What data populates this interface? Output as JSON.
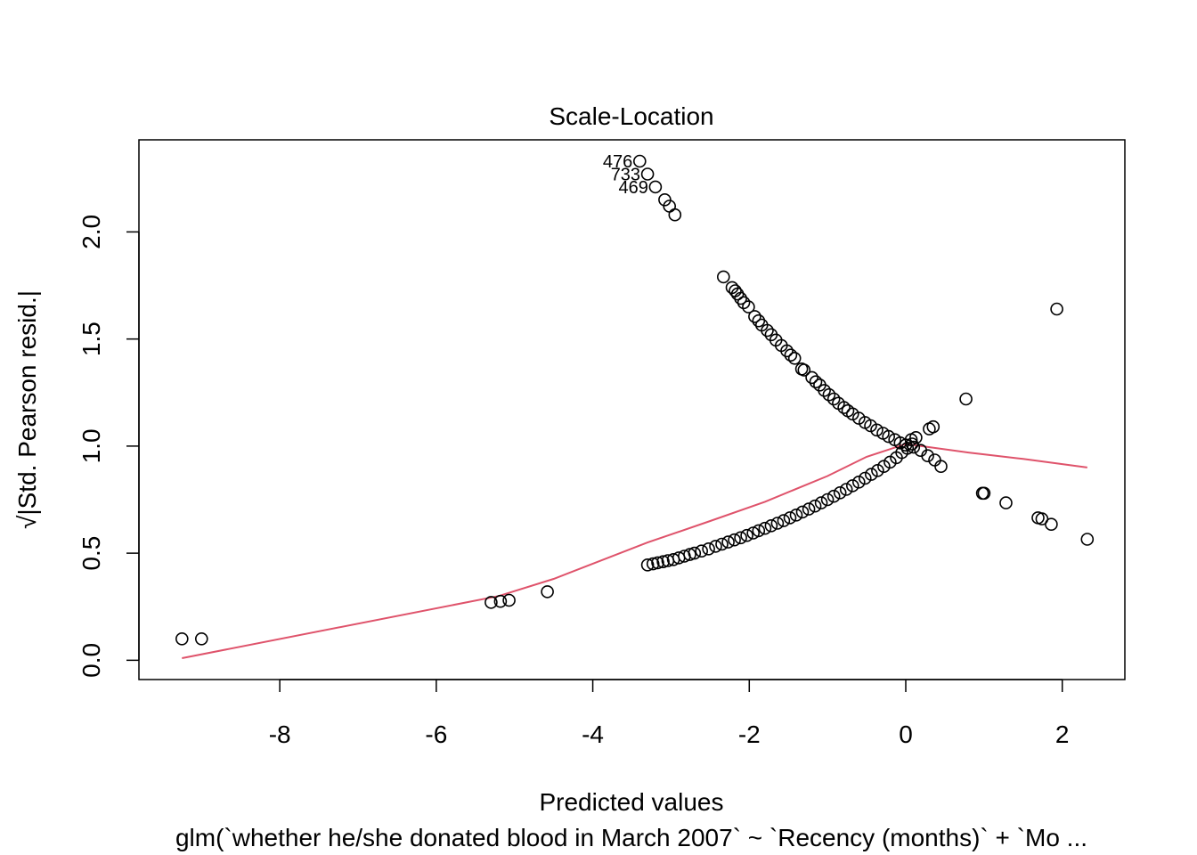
{
  "chart_data": {
    "type": "scatter",
    "title": "Scale-Location",
    "xlabel": "Predicted values",
    "ylabel": "√|Std. Pearson resid.|",
    "subtitle": "glm(`whether he/she donated blood in March 2007` ~ `Recency (months)` + `Mo ...",
    "xlim": [
      -9.8,
      2.8
    ],
    "ylim": [
      -0.09,
      2.43
    ],
    "xticks": [
      -8,
      -6,
      -4,
      -2,
      0,
      2
    ],
    "yticks": [
      0.0,
      0.5,
      1.0,
      1.5,
      2.0
    ],
    "ytick_labels": [
      "0.0",
      "0.5",
      "1.0",
      "1.5",
      "2.0"
    ],
    "grid": false,
    "colors": {
      "points": "#000000",
      "smooth": "#DF536B",
      "frame": "#000000"
    },
    "labeled_points": [
      {
        "label": "476",
        "x": -3.4,
        "y": 2.33
      },
      {
        "label": "733",
        "x": -3.3,
        "y": 2.27
      },
      {
        "label": "469",
        "x": -3.2,
        "y": 2.21
      }
    ],
    "series": [
      {
        "type": "scatter",
        "points": [
          [
            -9.25,
            0.1
          ],
          [
            -9.0,
            0.1
          ],
          [
            -5.3,
            0.27
          ],
          [
            -5.18,
            0.275
          ],
          [
            -5.07,
            0.28
          ],
          [
            -4.58,
            0.32
          ],
          [
            -3.4,
            2.33
          ],
          [
            -3.3,
            2.27
          ],
          [
            -3.2,
            2.21
          ],
          [
            -3.08,
            2.15
          ],
          [
            -3.02,
            2.12
          ],
          [
            -2.95,
            2.08
          ],
          [
            -2.33,
            1.79
          ],
          [
            -2.22,
            1.74
          ],
          [
            -2.18,
            1.725
          ],
          [
            -2.15,
            1.71
          ],
          [
            -2.11,
            1.69
          ],
          [
            -2.07,
            1.67
          ],
          [
            -2.01,
            1.65
          ],
          [
            -1.93,
            1.605
          ],
          [
            -1.88,
            1.585
          ],
          [
            -1.84,
            1.565
          ],
          [
            -1.77,
            1.54
          ],
          [
            -1.72,
            1.52
          ],
          [
            -1.66,
            1.495
          ],
          [
            -1.59,
            1.47
          ],
          [
            -1.52,
            1.445
          ],
          [
            -1.47,
            1.425
          ],
          [
            -1.42,
            1.41
          ],
          [
            -1.33,
            1.36
          ],
          [
            -1.3,
            1.355
          ],
          [
            -1.2,
            1.32
          ],
          [
            -1.15,
            1.3
          ],
          [
            -1.1,
            1.285
          ],
          [
            -1.04,
            1.26
          ],
          [
            -0.98,
            1.24
          ],
          [
            -0.92,
            1.22
          ],
          [
            -0.86,
            1.2
          ],
          [
            -0.79,
            1.18
          ],
          [
            -0.74,
            1.165
          ],
          [
            -0.68,
            1.15
          ],
          [
            -0.6,
            1.13
          ],
          [
            -0.52,
            1.11
          ],
          [
            -0.45,
            1.095
          ],
          [
            -0.37,
            1.075
          ],
          [
            -0.29,
            1.06
          ],
          [
            -0.22,
            1.045
          ],
          [
            -0.14,
            1.03
          ],
          [
            -0.07,
            1.015
          ],
          [
            0.0,
            1.005
          ],
          [
            0.1,
            0.995
          ],
          [
            0.19,
            0.98
          ],
          [
            0.28,
            0.955
          ],
          [
            0.37,
            0.935
          ],
          [
            0.45,
            0.905
          ],
          [
            0.3,
            1.08
          ],
          [
            0.35,
            1.09
          ],
          [
            0.13,
            1.04
          ],
          [
            0.07,
            1.03
          ],
          [
            0.77,
            1.22
          ],
          [
            0.98,
            0.78
          ],
          [
            1.0,
            0.78
          ],
          [
            1.28,
            0.735
          ],
          [
            1.69,
            0.665
          ],
          [
            1.74,
            0.66
          ],
          [
            1.86,
            0.635
          ],
          [
            2.32,
            0.565
          ],
          [
            1.93,
            1.64
          ],
          [
            -3.3,
            0.445
          ],
          [
            -3.23,
            0.45
          ],
          [
            -3.17,
            0.455
          ],
          [
            -3.1,
            0.46
          ],
          [
            -3.04,
            0.465
          ],
          [
            -2.97,
            0.47
          ],
          [
            -2.9,
            0.478
          ],
          [
            -2.83,
            0.486
          ],
          [
            -2.76,
            0.494
          ],
          [
            -2.7,
            0.5
          ],
          [
            -2.61,
            0.51
          ],
          [
            -2.52,
            0.52
          ],
          [
            -2.43,
            0.532
          ],
          [
            -2.35,
            0.542
          ],
          [
            -2.27,
            0.552
          ],
          [
            -2.19,
            0.562
          ],
          [
            -2.11,
            0.572
          ],
          [
            -2.03,
            0.583
          ],
          [
            -1.95,
            0.594
          ],
          [
            -1.88,
            0.605
          ],
          [
            -1.8,
            0.616
          ],
          [
            -1.72,
            0.628
          ],
          [
            -1.64,
            0.64
          ],
          [
            -1.56,
            0.652
          ],
          [
            -1.48,
            0.665
          ],
          [
            -1.4,
            0.678
          ],
          [
            -1.32,
            0.692
          ],
          [
            -1.24,
            0.706
          ],
          [
            -1.16,
            0.72
          ],
          [
            -1.08,
            0.735
          ],
          [
            -1.0,
            0.75
          ],
          [
            -0.92,
            0.766
          ],
          [
            -0.84,
            0.782
          ],
          [
            -0.76,
            0.798
          ],
          [
            -0.68,
            0.815
          ],
          [
            -0.6,
            0.832
          ],
          [
            -0.52,
            0.85
          ],
          [
            -0.44,
            0.868
          ],
          [
            -0.36,
            0.886
          ],
          [
            -0.28,
            0.905
          ],
          [
            -0.2,
            0.925
          ],
          [
            -0.12,
            0.946
          ],
          [
            -0.05,
            0.97
          ],
          [
            0.02,
            0.99
          ],
          [
            0.08,
            1.01
          ]
        ]
      },
      {
        "type": "line",
        "points": [
          [
            -9.25,
            0.01
          ],
          [
            -5.2,
            0.3
          ],
          [
            -4.5,
            0.38
          ],
          [
            -3.3,
            0.55
          ],
          [
            -2.5,
            0.65
          ],
          [
            -1.8,
            0.74
          ],
          [
            -1.0,
            0.86
          ],
          [
            -0.5,
            0.95
          ],
          [
            0.0,
            1.01
          ],
          [
            0.2,
            1.0
          ],
          [
            0.8,
            0.97
          ],
          [
            1.5,
            0.94
          ],
          [
            2.32,
            0.9
          ]
        ]
      }
    ]
  }
}
